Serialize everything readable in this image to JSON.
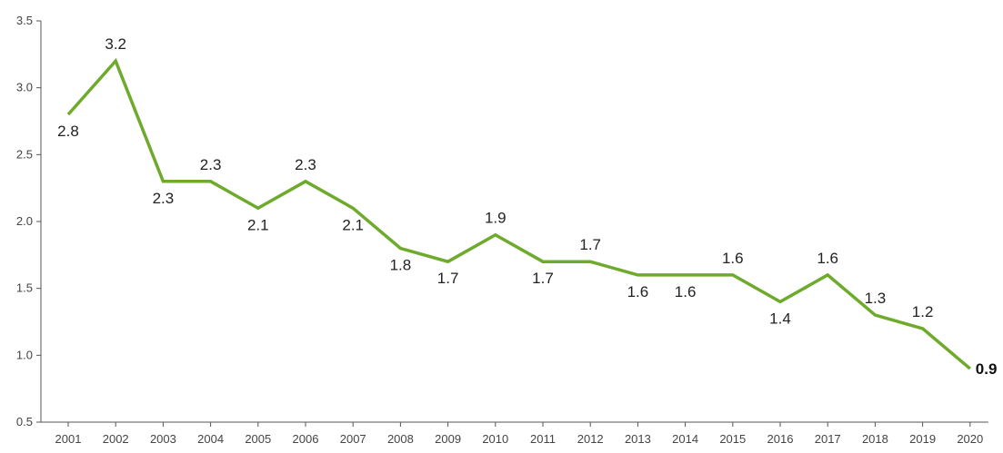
{
  "chart_data": {
    "type": "line",
    "title": "",
    "xlabel": "",
    "ylabel": "",
    "categories": [
      "2001",
      "2002",
      "2003",
      "2004",
      "2005",
      "2006",
      "2007",
      "2008",
      "2009",
      "2010",
      "2011",
      "2012",
      "2013",
      "2014",
      "2015",
      "2016",
      "2017",
      "2018",
      "2019",
      "2020"
    ],
    "series": [
      {
        "values": [
          2.8,
          3.2,
          2.3,
          2.3,
          2.1,
          2.3,
          2.1,
          1.8,
          1.7,
          1.9,
          1.7,
          1.7,
          1.6,
          1.6,
          1.6,
          1.4,
          1.6,
          1.3,
          1.2,
          0.9
        ],
        "data_labels": [
          "2.8",
          "3.2",
          "2.3",
          "2.3",
          "2.1",
          "2.3",
          "2.1",
          "1.8",
          "1.7",
          "1.9",
          "1.7",
          "1.7",
          "1.6",
          "1.6",
          "1.6",
          "1.4",
          "1.6",
          "1.3",
          "1.2",
          "0.9"
        ],
        "color": "#6eab2c"
      }
    ],
    "ylim": [
      0.5,
      3.5
    ],
    "yticks": [
      "0.5",
      "1.0",
      "1.5",
      "2.0",
      "2.5",
      "3.0",
      "3.5"
    ],
    "grid": false,
    "legend": "none"
  }
}
